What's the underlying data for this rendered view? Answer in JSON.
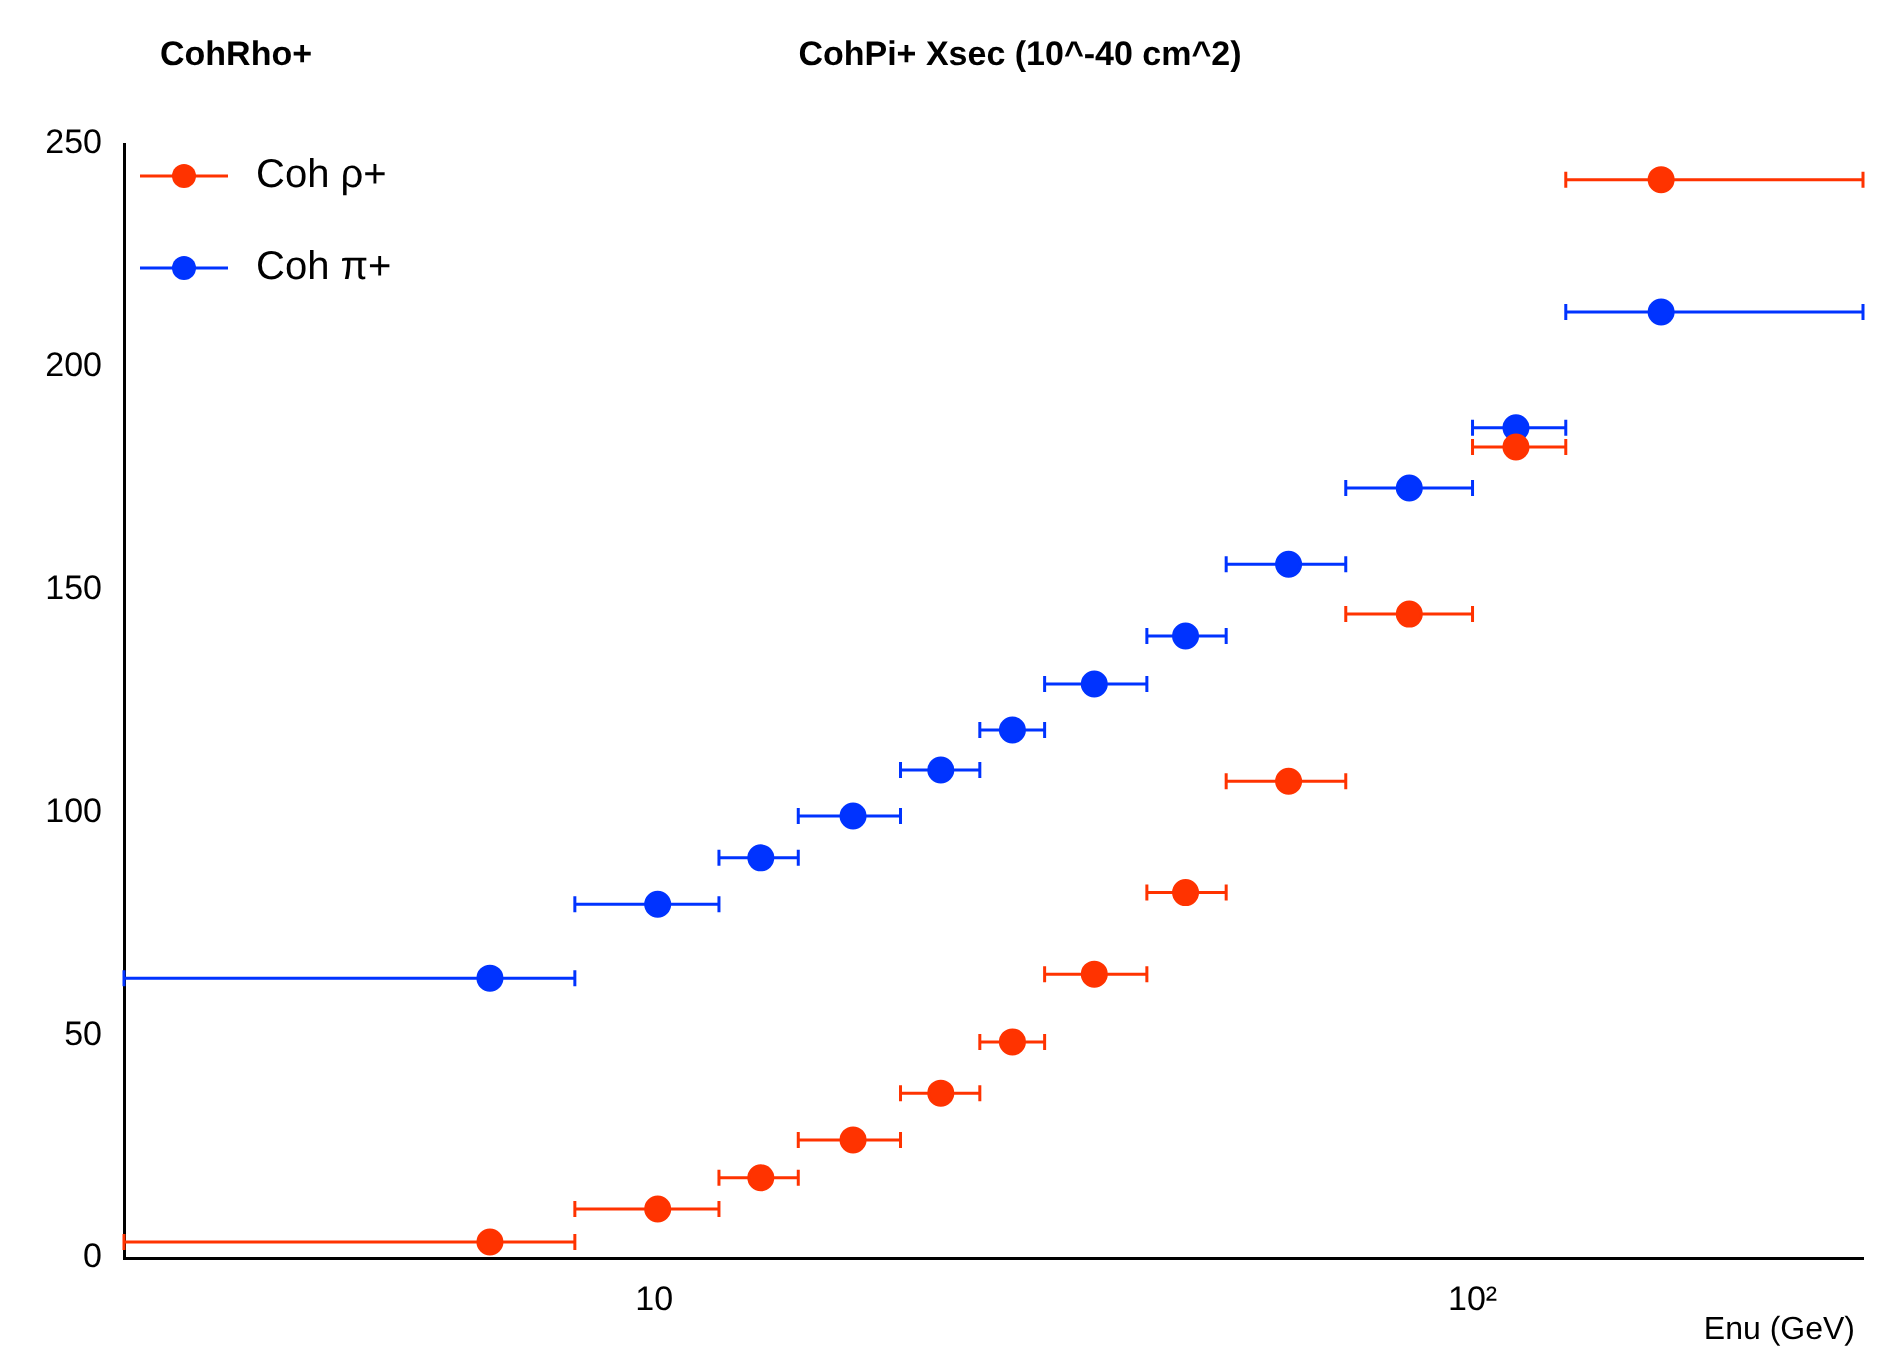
{
  "chart_data": {
    "type": "scatter",
    "title": "CohPi+ Xsec (10^-40 cm^2)",
    "xlabel": "Enu (GeV)",
    "annotations": [
      "CohRho+"
    ],
    "x": [
      6.3,
      10.1,
      13.5,
      17.5,
      22.4,
      27.4,
      34.5,
      44.6,
      59.6,
      83.7,
      113,
      170
    ],
    "series": [
      {
        "name": "Coh ρ+",
        "color": "#ff3300",
        "values": [
          3.6,
          11,
          18,
          26.5,
          37,
          48.5,
          63.7,
          82,
          107,
          144.5,
          182,
          242
        ],
        "xerrors": [
          [
            2.25,
            8
          ],
          [
            8,
            12
          ],
          [
            12,
            15
          ],
          [
            15,
            20
          ],
          [
            20,
            25
          ],
          [
            25,
            30
          ],
          [
            30,
            40
          ],
          [
            40,
            50
          ],
          [
            50,
            70
          ],
          [
            70,
            100
          ],
          [
            100,
            130
          ],
          [
            130,
            300
          ]
        ]
      },
      {
        "name": "Coh π+",
        "color": "#0033ff",
        "values": [
          62.8,
          79.4,
          89.8,
          99.2,
          109.5,
          118.5,
          128.8,
          139.6,
          155.7,
          172.8,
          186.3,
          212.3
        ],
        "xerrors": [
          [
            2.25,
            8
          ],
          [
            8,
            12
          ],
          [
            12,
            15
          ],
          [
            15,
            20
          ],
          [
            20,
            25
          ],
          [
            25,
            30
          ],
          [
            30,
            40
          ],
          [
            40,
            50
          ],
          [
            50,
            70
          ],
          [
            70,
            100
          ],
          [
            100,
            130
          ],
          [
            130,
            300
          ]
        ]
      }
    ],
    "log": "x",
    "xlim": [
      2.25,
      300
    ],
    "xticks": [
      {
        "value": 10,
        "label": "10"
      },
      {
        "value": 100,
        "label": "10²"
      }
    ],
    "ylim": [
      0,
      250
    ],
    "yticks": [
      0,
      50,
      100,
      150,
      200,
      250
    ],
    "grid": false,
    "legend": "top left",
    "marker": "circle"
  }
}
